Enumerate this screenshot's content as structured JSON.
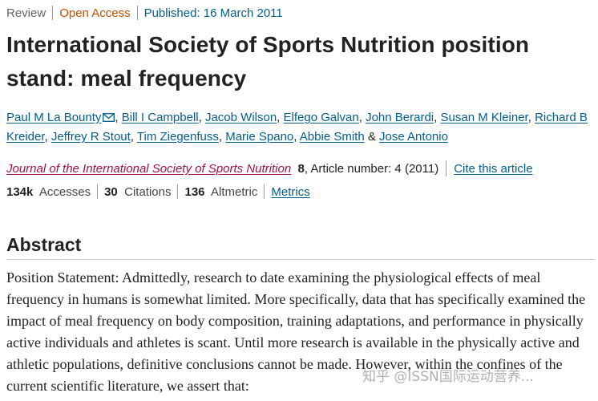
{
  "header": {
    "article_type": "Review",
    "access": "Open Access",
    "published": "Published: 16 March 2011"
  },
  "title": "International Society of Sports Nutrition position stand: meal frequency",
  "authors": [
    {
      "name": "Paul M La Bounty",
      "has_email": true
    },
    {
      "name": "Bill I Campbell"
    },
    {
      "name": "Jacob Wilson"
    },
    {
      "name": "Elfego Galvan"
    },
    {
      "name": "John Berardi"
    },
    {
      "name": "Susan M Kleiner"
    },
    {
      "name": "Richard B Kreider"
    },
    {
      "name": "Jeffrey R Stout"
    },
    {
      "name": "Tim Ziegenfuss"
    },
    {
      "name": "Marie Spano"
    },
    {
      "name": "Abbie Smith"
    },
    {
      "name": "Jose Antonio"
    }
  ],
  "authors_final_joiner": "&",
  "citation": {
    "journal": "Journal of the International Society of Sports Nutrition",
    "volume": "8",
    "article_number": ", Article number: 4 (2011)",
    "cite_link": "Cite this article"
  },
  "metrics": {
    "accesses_value": "134k",
    "accesses_label": "Accesses",
    "citations_value": "30",
    "citations_label": "Citations",
    "altmetric_value": "136",
    "altmetric_label": "Altmetric",
    "metrics_link": "Metrics"
  },
  "abstract": {
    "heading": "Abstract",
    "text": "Position Statement: Admittedly, research to date examining the physiological effects of meal frequency in humans is somewhat limited. More specifically, data that has specifically examined the impact of meal frequency on body composition, training adaptations, and performance in physically active individuals and athletes is scant. Until more research is available in the physically active and athletic populations, definitive conclusions cannot be made. However, within the confines of the current scientific literature, we assert that:"
  },
  "watermark": "知乎 @ISSN国际运动营养..."
}
